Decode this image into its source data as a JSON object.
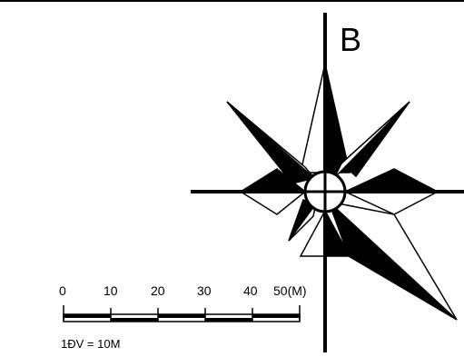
{
  "compass": {
    "north_label": "B"
  },
  "scale_bar": {
    "ticks": [
      "0",
      "10",
      "20",
      "30",
      "40",
      "50(M)"
    ],
    "ratio_label": "1ĐV = 10M"
  }
}
